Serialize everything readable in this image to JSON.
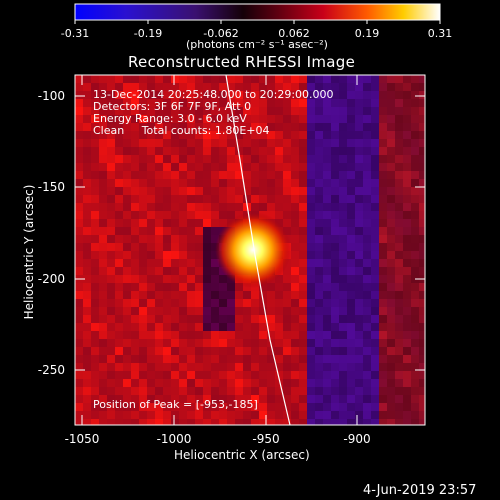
{
  "colorbar": {
    "ticks": [
      "-0.31",
      "-0.19",
      "-0.062",
      "0.062",
      "0.19",
      "0.31"
    ],
    "units": "(photons cm⁻² s⁻¹ asec⁻²)",
    "colormap": [
      "#0000ff",
      "#3018c0",
      "#4a1a80",
      "#000000",
      "#7a0018",
      "#c00020",
      "#ff2a00",
      "#ff8800",
      "#ffff00",
      "#ffffff"
    ]
  },
  "title": "Reconstructed RHESSI Image",
  "annotations": {
    "time_range": "13-Dec-2014 20:25:48.000 to 20:29:00.000",
    "detectors": "Detectors: 3F 6F 7F 9F, Att 0",
    "energy": "Energy Range: 3.0 - 6.0 keV",
    "clean": "Clean     Total counts: 1.80E+04",
    "peak": "Position of Peak = [-953,-185]"
  },
  "axes": {
    "xlabel": "Heliocentric X (arcsec)",
    "ylabel": "Heliocentric Y (arcsec)",
    "xticks": [
      "-1050",
      "-1000",
      "-950",
      "-900"
    ],
    "yticks": [
      "-100",
      "-150",
      "-200",
      "-250"
    ],
    "xlim": [
      -1054,
      -888
    ],
    "ylim": [
      -281,
      -90
    ]
  },
  "footer": {
    "date": "4-Jun-2019 23:57"
  }
}
